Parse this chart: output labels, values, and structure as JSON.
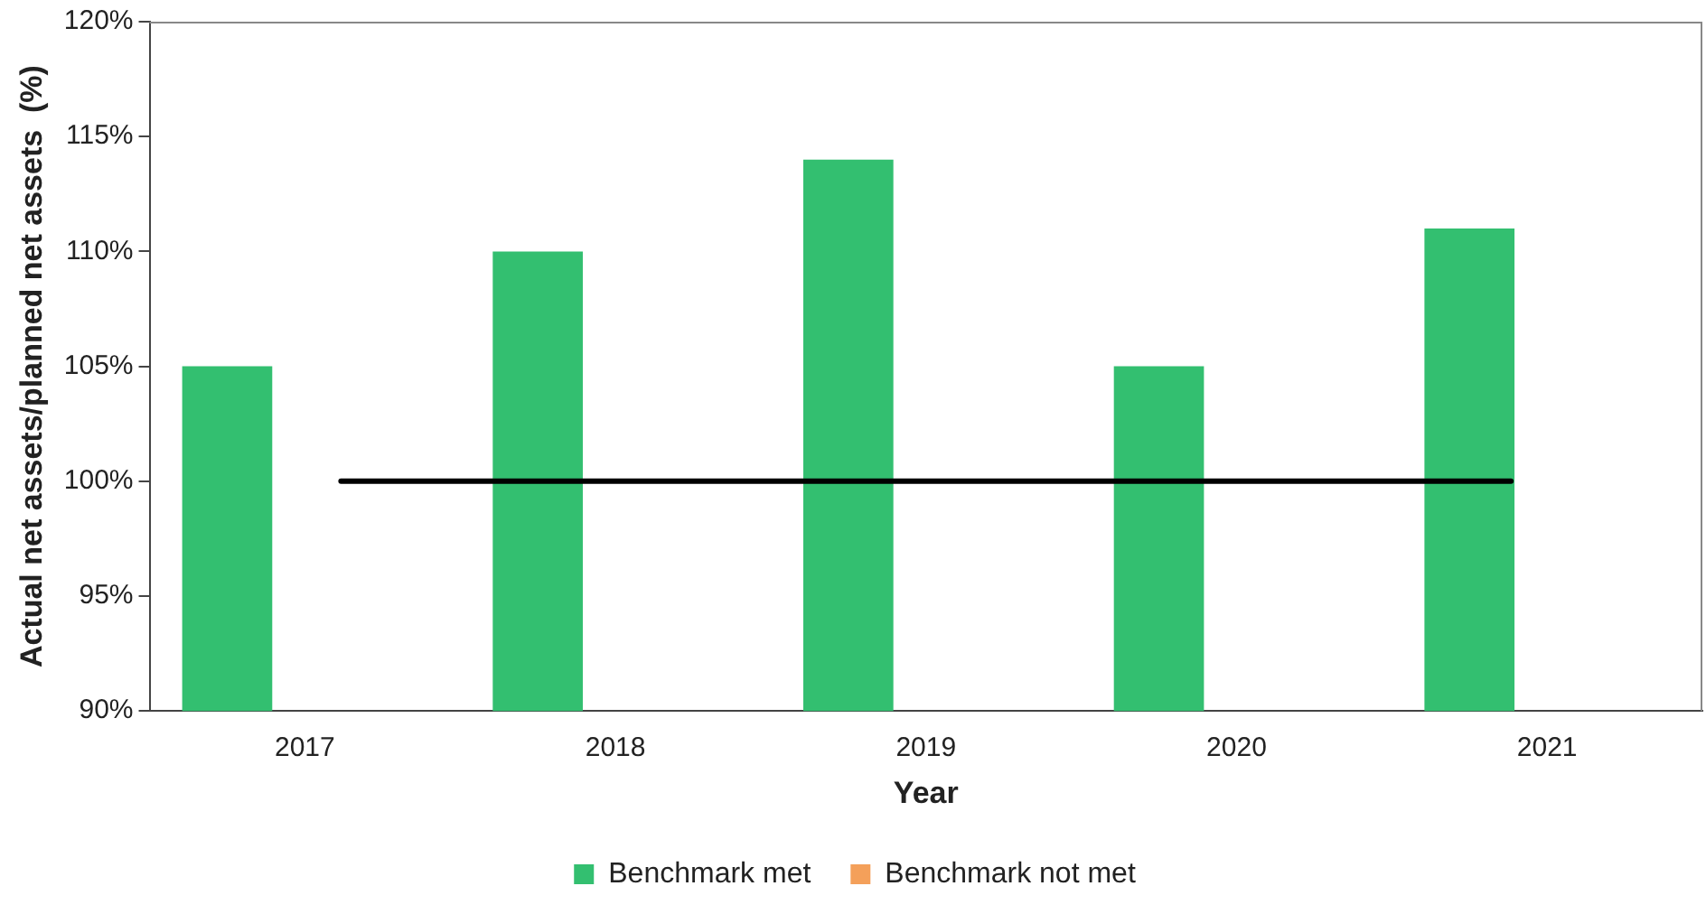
{
  "chart_data": {
    "type": "bar",
    "xlabel": "Year",
    "ylabel": "Actual net assets/planned net assets  (%)",
    "categories": [
      "2017",
      "2018",
      "2019",
      "2020",
      "2021"
    ],
    "series": [
      {
        "name": "Benchmark met",
        "color": "#33bf70",
        "values": [
          105,
          110,
          114,
          105,
          111
        ]
      },
      {
        "name": "Benchmark not met",
        "color": "#f4a05a",
        "values": [
          null,
          null,
          null,
          null,
          null
        ]
      }
    ],
    "ylim": [
      90,
      120
    ],
    "yticks": [
      {
        "value": 90,
        "label": "90%"
      },
      {
        "value": 95,
        "label": "95%"
      },
      {
        "value": 100,
        "label": "100%"
      },
      {
        "value": 105,
        "label": "105%"
      },
      {
        "value": 110,
        "label": "110%"
      },
      {
        "value": 115,
        "label": "115%"
      },
      {
        "value": 120,
        "label": "120%"
      }
    ],
    "ref_lines": [
      {
        "axis": "y",
        "value": 100,
        "color": "#000000"
      }
    ],
    "grid": false,
    "legend": "bottom"
  }
}
